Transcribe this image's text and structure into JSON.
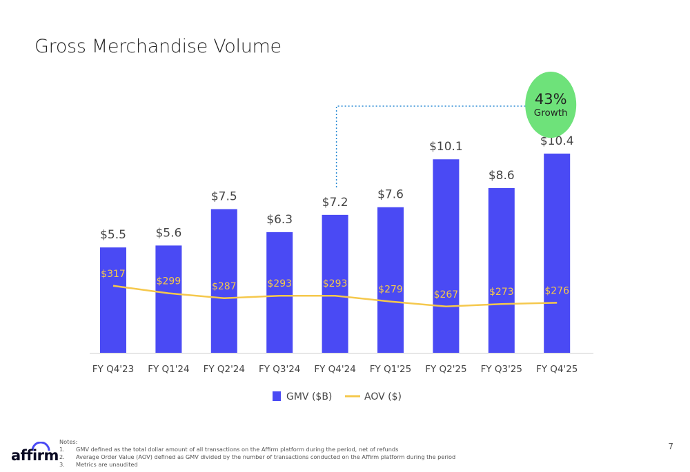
{
  "title": "Gross Merchandise Volume",
  "chart_data": {
    "type": "bar",
    "categories": [
      "FY Q4'23",
      "FY Q1'24",
      "FY Q2'24",
      "FY Q3'24",
      "FY Q4'24",
      "FY Q1'25",
      "FY Q2'25",
      "FY Q3'25",
      "FY Q4'25"
    ],
    "series": [
      {
        "name": "GMV ($B)",
        "type": "bar",
        "color": "#4a4af4",
        "values": [
          5.5,
          5.6,
          7.5,
          6.3,
          7.2,
          7.6,
          10.1,
          8.6,
          10.4
        ],
        "labels": [
          "$5.5",
          "$5.6",
          "$7.5",
          "$6.3",
          "$7.2",
          "$7.6",
          "$10.1",
          "$8.6",
          "$10.4"
        ]
      },
      {
        "name": "AOV ($)",
        "type": "line",
        "color": "#f5c84c",
        "values": [
          317,
          299,
          287,
          293,
          293,
          279,
          267,
          273,
          276
        ],
        "labels": [
          "$317",
          "$299",
          "$287",
          "$293",
          "$293",
          "$279",
          "$267",
          "$273",
          "$276"
        ]
      }
    ],
    "annotation": {
      "value": "43%",
      "text": "Growth",
      "from": "FY Q4'24",
      "to": "FY Q4'25",
      "color": "#6ee27a"
    },
    "legend": "bottom"
  },
  "notes": {
    "heading": "Notes:",
    "items": [
      {
        "num": "1.",
        "text": "GMV defined as the total dollar amount of all transactions on the Affirm platform during the period, net of refunds"
      },
      {
        "num": "2.",
        "text": "Average Order Value (AOV) defined as GMV divided by the number of transactions conducted on the Affirm platform during the period"
      },
      {
        "num": "3.",
        "text": "Metrics are unaudited"
      }
    ]
  },
  "page_number": "7",
  "logo": "affirm"
}
